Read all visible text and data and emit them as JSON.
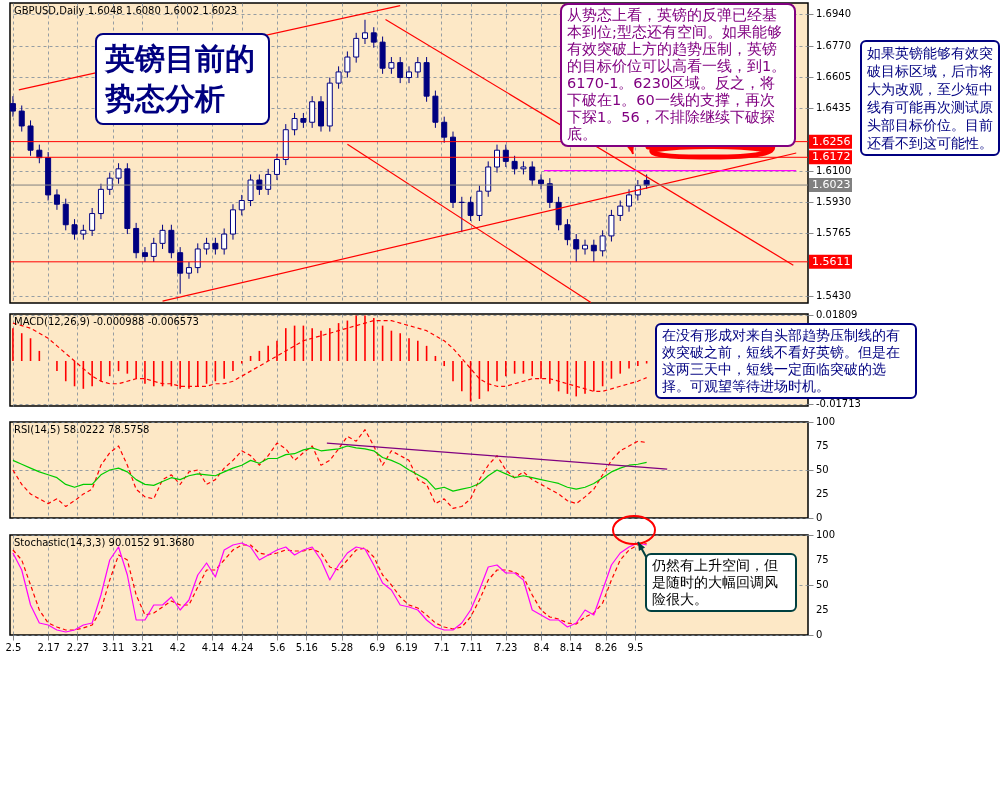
{
  "chart_data": [
    {
      "type": "candlestick",
      "title": "GBPUSD,Daily  1.6048 1.6080 1.6002 1.6023",
      "x": [
        "--02-05",
        "--02-08",
        "--02-11",
        "--02-14",
        "--02-17",
        "--02-20",
        "--02-23",
        "--02-26",
        "--03-01",
        "--03-04",
        "--03-07",
        "--03-10",
        "--03-13",
        "--03-16",
        "--03-19",
        "--03-22",
        "--03-25",
        "--03-28",
        "--03-31",
        "--04-03",
        "--04-06",
        "--04-09",
        "--04-12",
        "--04-15",
        "--04-18",
        "--04-21",
        "--04-24",
        "--04-27",
        "--04-30",
        "--05-03",
        "--05-06",
        "--05-09",
        "--05-12",
        "--05-15",
        "--05-18",
        "--05-21",
        "--05-24",
        "--05-27",
        "--05-30",
        "--06-02",
        "--06-05",
        "--06-08",
        "--06-11",
        "--06-14",
        "--06-17",
        "--06-20",
        "--06-23",
        "--06-26",
        "--06-29",
        "--07-02",
        "--07-05",
        "--07-08",
        "--07-11",
        "--07-14",
        "--07-17",
        "--07-20",
        "--07-23",
        "--07-26",
        "--07-29",
        "--08-01",
        "--08-04",
        "--08-07",
        "--08-10",
        "--08-13",
        "--08-16",
        "--08-19",
        "--08-22",
        "--08-25",
        "--08-28",
        "--08-31",
        "--09-03",
        "--09-06",
        "--09-09"
      ],
      "series": [
        {
          "color": "#000080",
          "ohlc": [
            [
              1.646,
              1.65,
              1.639,
              1.642
            ],
            [
              1.642,
              1.645,
              1.631,
              1.634
            ],
            [
              1.634,
              1.637,
              1.618,
              1.621
            ],
            [
              1.621,
              1.624,
              1.614,
              1.617
            ],
            [
              1.617,
              1.62,
              1.594,
              1.597
            ],
            [
              1.597,
              1.6,
              1.589,
              1.592
            ],
            [
              1.592,
              1.595,
              1.578,
              1.581
            ],
            [
              1.581,
              1.584,
              1.573,
              1.576
            ],
            [
              1.576,
              1.581,
              1.573,
              1.578
            ],
            [
              1.578,
              1.59,
              1.575,
              1.587
            ],
            [
              1.587,
              1.603,
              1.584,
              1.6
            ],
            [
              1.6,
              1.609,
              1.597,
              1.606
            ],
            [
              1.606,
              1.614,
              1.603,
              1.611
            ],
            [
              1.611,
              1.614,
              1.576,
              1.579
            ],
            [
              1.579,
              1.582,
              1.563,
              1.566
            ],
            [
              1.566,
              1.569,
              1.561,
              1.564
            ],
            [
              1.564,
              1.574,
              1.561,
              1.571
            ],
            [
              1.571,
              1.581,
              1.568,
              1.578
            ],
            [
              1.578,
              1.581,
              1.563,
              1.566
            ],
            [
              1.566,
              1.569,
              1.544,
              1.555
            ],
            [
              1.555,
              1.561,
              1.552,
              1.558
            ],
            [
              1.558,
              1.571,
              1.555,
              1.568
            ],
            [
              1.568,
              1.574,
              1.565,
              1.571
            ],
            [
              1.571,
              1.574,
              1.565,
              1.568
            ],
            [
              1.568,
              1.579,
              1.565,
              1.576
            ],
            [
              1.576,
              1.592,
              1.573,
              1.589
            ],
            [
              1.589,
              1.597,
              1.586,
              1.594
            ],
            [
              1.594,
              1.608,
              1.591,
              1.605
            ],
            [
              1.605,
              1.608,
              1.597,
              1.6
            ],
            [
              1.6,
              1.611,
              1.597,
              1.608
            ],
            [
              1.608,
              1.619,
              1.605,
              1.616
            ],
            [
              1.616,
              1.635,
              1.613,
              1.632
            ],
            [
              1.632,
              1.641,
              1.629,
              1.638
            ],
            [
              1.638,
              1.641,
              1.633,
              1.636
            ],
            [
              1.636,
              1.65,
              1.633,
              1.647
            ],
            [
              1.647,
              1.65,
              1.631,
              1.634
            ],
            [
              1.634,
              1.66,
              1.631,
              1.657
            ],
            [
              1.657,
              1.666,
              1.654,
              1.663
            ],
            [
              1.663,
              1.674,
              1.66,
              1.671
            ],
            [
              1.671,
              1.684,
              1.668,
              1.681
            ],
            [
              1.681,
              1.691,
              1.678,
              1.684
            ],
            [
              1.684,
              1.687,
              1.676,
              1.679
            ],
            [
              1.679,
              1.682,
              1.662,
              1.665
            ],
            [
              1.665,
              1.671,
              1.662,
              1.668
            ],
            [
              1.668,
              1.671,
              1.657,
              1.66
            ],
            [
              1.66,
              1.666,
              1.657,
              1.663
            ],
            [
              1.663,
              1.671,
              1.66,
              1.668
            ],
            [
              1.668,
              1.671,
              1.647,
              1.65
            ],
            [
              1.65,
              1.653,
              1.633,
              1.636
            ],
            [
              1.636,
              1.639,
              1.625,
              1.628
            ],
            [
              1.628,
              1.631,
              1.59,
              1.593
            ],
            [
              1.593,
              1.596,
              1.577,
              1.593
            ],
            [
              1.593,
              1.596,
              1.583,
              1.586
            ],
            [
              1.586,
              1.602,
              1.583,
              1.599
            ],
            [
              1.599,
              1.615,
              1.596,
              1.612
            ],
            [
              1.612,
              1.624,
              1.609,
              1.621
            ],
            [
              1.621,
              1.624,
              1.612,
              1.615
            ],
            [
              1.615,
              1.618,
              1.608,
              1.611
            ],
            [
              1.611,
              1.615,
              1.608,
              1.612
            ],
            [
              1.612,
              1.615,
              1.602,
              1.605
            ],
            [
              1.605,
              1.608,
              1.6,
              1.603
            ],
            [
              1.603,
              1.606,
              1.59,
              1.593
            ],
            [
              1.593,
              1.596,
              1.578,
              1.581
            ],
            [
              1.581,
              1.584,
              1.57,
              1.573
            ],
            [
              1.573,
              1.576,
              1.5611,
              1.568
            ],
            [
              1.568,
              1.573,
              1.565,
              1.57
            ],
            [
              1.57,
              1.573,
              1.5611,
              1.567
            ],
            [
              1.567,
              1.578,
              1.564,
              1.575
            ],
            [
              1.575,
              1.589,
              1.572,
              1.586
            ],
            [
              1.586,
              1.594,
              1.583,
              1.591
            ],
            [
              1.591,
              1.6,
              1.588,
              1.597
            ],
            [
              1.597,
              1.605,
              1.594,
              1.602
            ],
            [
              1.6048,
              1.608,
              1.6002,
              1.6023
            ]
          ]
        },
        {
          "type": "line",
          "color": "#ff0000",
          "x": [
            "--02-07",
            "--06-17"
          ],
          "values": [
            1.6534,
            1.6986
          ]
        },
        {
          "type": "line",
          "color": "#ff0000",
          "x": [
            "--03-28",
            "--10-30"
          ],
          "values": [
            1.54,
            1.6195
          ]
        },
        {
          "type": "line",
          "color": "#ff0000",
          "x": [
            "--06-12",
            "--10-29"
          ],
          "values": [
            1.6912,
            1.5593
          ]
        },
        {
          "type": "line",
          "color": "#ff0000",
          "x": [
            "--05-30",
            "--08-21"
          ],
          "values": [
            1.6242,
            1.5393
          ]
        },
        {
          "type": "line",
          "color": "#ff00ff",
          "x": [
            "--08-05",
            "--10-30"
          ],
          "values": [
            1.61,
            1.61
          ]
        }
      ],
      "xlim": [
        "--02-04",
        "--11-03"
      ],
      "xticks": [
        {
          "value": "--02-05",
          "label": "2.5"
        },
        {
          "value": "--02-17",
          "label": "2.17"
        },
        {
          "value": "--02-27",
          "label": "2.27"
        },
        {
          "value": "--03-11",
          "label": "3.11"
        },
        {
          "value": "--03-21",
          "label": "3.21"
        },
        {
          "value": "--04-02",
          "label": "4.2"
        },
        {
          "value": "--04-14",
          "label": "4.14"
        },
        {
          "value": "--04-24",
          "label": "4.24"
        },
        {
          "value": "--05-06",
          "label": "5.6"
        },
        {
          "value": "--05-16",
          "label": "5.16"
        },
        {
          "value": "--05-28",
          "label": "5.28"
        },
        {
          "value": "--06-09",
          "label": "6.9"
        },
        {
          "value": "--06-19",
          "label": "6.19"
        },
        {
          "value": "--07-01",
          "label": "7.1"
        },
        {
          "value": "--07-11",
          "label": "7.11"
        },
        {
          "value": "--07-23",
          "label": "7.23"
        },
        {
          "value": "--08-04",
          "label": "8.4"
        },
        {
          "value": "--08-14",
          "label": "8.14"
        },
        {
          "value": "--08-26",
          "label": "8.26"
        },
        {
          "value": "--09-05",
          "label": "9.5"
        }
      ],
      "ylim": [
        1.539,
        1.7
      ],
      "yticks": [
        {
          "value": 1.694,
          "label": "1.6940"
        },
        {
          "value": 1.677,
          "label": "1.6770"
        },
        1.6605,
        1.6435,
        {
          "value": 1.61,
          "label": "1.6100"
        },
        {
          "value": 1.593,
          "label": "1.5930"
        },
        1.5765,
        {
          "value": 1.543,
          "label": "1.5430"
        }
      ],
      "ref_lines": [
        {
          "axis": "y",
          "value": 1.6256,
          "label": "1.6256",
          "color": "#ff0000"
        },
        {
          "axis": "y",
          "value": 1.6172,
          "label": "1.6172",
          "color": "#ff0000"
        },
        {
          "axis": "y",
          "value": 1.5611,
          "label": "1.5611",
          "color": "#ff0000"
        },
        {
          "axis": "y",
          "value": 1.6023,
          "label": "1.6023",
          "color": "#808080"
        }
      ],
      "grid": true,
      "tick_labels": "y",
      "annotations": [
        "英镑目前的势态分析",
        "从势态上看，英镑的反弹已经基本到位;型态还有空间。如果能够有效突破上方的趋势压制，英镑的目标价位可以高看一线，到1。6170-1。6230区域。反之，将下破在1。60一线的支撑，再次下探1。56，不排除继续下破探底。",
        "如果英镑能够有效突破目标区域，后市将大为改观，至少短中线有可能再次测试原头部目标价位。目前还看不到这可能性。"
      ]
    },
    {
      "type": "bar",
      "title": "MACD(12,26,9)  -0.000988  -0.006573",
      "x": [
        "--02-05",
        "--02-08",
        "--02-11",
        "--02-14",
        "--02-17",
        "--02-20",
        "--02-23",
        "--02-26",
        "--03-01",
        "--03-04",
        "--03-07",
        "--03-10",
        "--03-13",
        "--03-16",
        "--03-19",
        "--03-22",
        "--03-25",
        "--03-28",
        "--03-31",
        "--04-03",
        "--04-06",
        "--04-09",
        "--04-12",
        "--04-15",
        "--04-18",
        "--04-21",
        "--04-24",
        "--04-27",
        "--04-30",
        "--05-03",
        "--05-06",
        "--05-09",
        "--05-12",
        "--05-15",
        "--05-18",
        "--05-21",
        "--05-24",
        "--05-27",
        "--05-30",
        "--06-02",
        "--06-05",
        "--06-08",
        "--06-11",
        "--06-14",
        "--06-17",
        "--06-20",
        "--06-23",
        "--06-26",
        "--06-29",
        "--07-02",
        "--07-05",
        "--07-08",
        "--07-11",
        "--07-14",
        "--07-17",
        "--07-20",
        "--07-23",
        "--07-26",
        "--07-29",
        "--08-01",
        "--08-04",
        "--08-07",
        "--08-10",
        "--08-13",
        "--08-16",
        "--08-19",
        "--08-22",
        "--08-25",
        "--08-28",
        "--08-31",
        "--09-03",
        "--09-06",
        "--09-09"
      ],
      "series": [
        {
          "color": "#ff0000",
          "values": [
            0.013,
            0.011,
            0.009,
            0.004,
            0.0,
            -0.004,
            -0.008,
            -0.01,
            -0.011,
            -0.01,
            -0.008,
            -0.006,
            -0.004,
            -0.005,
            -0.007,
            -0.009,
            -0.01,
            -0.01,
            -0.01,
            -0.011,
            -0.011,
            -0.01,
            -0.009,
            -0.008,
            -0.007,
            -0.004,
            -0.001,
            0.002,
            0.004,
            0.006,
            0.008,
            0.013,
            0.014,
            0.014,
            0.013,
            0.012,
            0.013,
            0.015,
            0.016,
            0.018,
            0.018,
            0.017,
            0.014,
            0.012,
            0.011,
            0.009,
            0.008,
            0.006,
            0.002,
            -0.002,
            -0.008,
            -0.012,
            -0.016,
            -0.015,
            -0.012,
            -0.008,
            -0.006,
            -0.005,
            -0.005,
            -0.006,
            -0.007,
            -0.009,
            -0.012,
            -0.013,
            -0.014,
            -0.013,
            -0.012,
            -0.01,
            -0.007,
            -0.005,
            -0.003,
            -0.002,
            -0.000988
          ]
        },
        {
          "type": "line",
          "color": "#ff0000",
          "line_style": "dashed",
          "values": [
            0.015,
            0.014,
            0.013,
            0.011,
            0.009,
            0.006,
            0.003,
            0.0,
            -0.003,
            -0.006,
            -0.008,
            -0.009,
            -0.009,
            -0.008,
            -0.007,
            -0.007,
            -0.008,
            -0.009,
            -0.009,
            -0.01,
            -0.01,
            -0.01,
            -0.01,
            -0.009,
            -0.009,
            -0.008,
            -0.006,
            -0.004,
            -0.002,
            0.0,
            0.002,
            0.004,
            0.006,
            0.008,
            0.009,
            0.01,
            0.011,
            0.012,
            0.013,
            0.014,
            0.015,
            0.016,
            0.016,
            0.016,
            0.015,
            0.014,
            0.013,
            0.012,
            0.01,
            0.008,
            0.005,
            0.001,
            -0.003,
            -0.007,
            -0.009,
            -0.01,
            -0.01,
            -0.009,
            -0.008,
            -0.007,
            -0.007,
            -0.007,
            -0.008,
            -0.009,
            -0.01,
            -0.011,
            -0.012,
            -0.012,
            -0.011,
            -0.01,
            -0.009,
            -0.008,
            -0.006573
          ]
        }
      ],
      "xlim": [
        "--02-04",
        "--11-03"
      ],
      "xticks": [
        {
          "value": "--02-05",
          "label": "2.5"
        },
        {
          "value": "--02-17",
          "label": "2.17"
        },
        {
          "value": "--02-27",
          "label": "2.27"
        },
        {
          "value": "--03-11",
          "label": "3.11"
        },
        {
          "value": "--03-21",
          "label": "3.21"
        },
        {
          "value": "--04-02",
          "label": "4.2"
        },
        {
          "value": "--04-14",
          "label": "4.14"
        },
        {
          "value": "--04-24",
          "label": "4.24"
        },
        {
          "value": "--05-06",
          "label": "5.6"
        },
        {
          "value": "--05-16",
          "label": "5.16"
        },
        {
          "value": "--05-28",
          "label": "5.28"
        },
        {
          "value": "--06-09",
          "label": "6.9"
        },
        {
          "value": "--06-19",
          "label": "6.19"
        },
        {
          "value": "--07-01",
          "label": "7.1"
        },
        {
          "value": "--07-11",
          "label": "7.11"
        },
        {
          "value": "--07-23",
          "label": "7.23"
        },
        {
          "value": "--08-04",
          "label": "8.4"
        },
        {
          "value": "--08-14",
          "label": "8.14"
        },
        {
          "value": "--08-26",
          "label": "8.26"
        },
        {
          "value": "--09-05",
          "label": "9.5"
        }
      ],
      "ylim": [
        -0.0178,
        0.0186
      ],
      "yticks": [
        0.01809,
        -0.01713
      ],
      "grid": true,
      "tick_labels": "y",
      "annotations": [
        "在没有形成对来自头部趋势压制线的有效突破之前，短线不看好英镑。但是在这两三天中，短线一定面临突破的选择。可观望等待进场时机。"
      ]
    },
    {
      "type": "line",
      "title": "RSI(14,5)  58.0222  78.5758",
      "x": [
        "--02-05",
        "--02-08",
        "--02-11",
        "--02-14",
        "--02-17",
        "--02-20",
        "--02-23",
        "--02-26",
        "--03-01",
        "--03-04",
        "--03-07",
        "--03-10",
        "--03-13",
        "--03-16",
        "--03-19",
        "--03-22",
        "--03-25",
        "--03-28",
        "--03-31",
        "--04-03",
        "--04-06",
        "--04-09",
        "--04-12",
        "--04-15",
        "--04-18",
        "--04-21",
        "--04-24",
        "--04-27",
        "--04-30",
        "--05-03",
        "--05-06",
        "--05-09",
        "--05-12",
        "--05-15",
        "--05-18",
        "--05-21",
        "--05-24",
        "--05-27",
        "--05-30",
        "--06-02",
        "--06-05",
        "--06-08",
        "--06-11",
        "--06-14",
        "--06-17",
        "--06-20",
        "--06-23",
        "--06-26",
        "--06-29",
        "--07-02",
        "--07-05",
        "--07-08",
        "--07-11",
        "--07-14",
        "--07-17",
        "--07-20",
        "--07-23",
        "--07-26",
        "--07-29",
        "--08-01",
        "--08-04",
        "--08-07",
        "--08-10",
        "--08-13",
        "--08-16",
        "--08-19",
        "--08-22",
        "--08-25",
        "--08-28",
        "--08-31",
        "--09-03",
        "--09-06",
        "--09-09"
      ],
      "series": [
        {
          "color": "#ff0000",
          "line_style": "dashed",
          "values": [
            50,
            35,
            25,
            20,
            15,
            20,
            12,
            18,
            25,
            30,
            55,
            68,
            75,
            55,
            30,
            22,
            20,
            40,
            45,
            35,
            48,
            50,
            35,
            40,
            52,
            60,
            70,
            65,
            55,
            65,
            78,
            72,
            60,
            68,
            75,
            55,
            60,
            72,
            85,
            80,
            92,
            75,
            55,
            70,
            65,
            60,
            40,
            35,
            15,
            20,
            10,
            12,
            20,
            40,
            55,
            65,
            50,
            42,
            48,
            40,
            35,
            30,
            25,
            18,
            15,
            22,
            30,
            45,
            60,
            70,
            75,
            80,
            78.5758
          ]
        },
        {
          "color": "#00cc00",
          "values": [
            60,
            56,
            52,
            48,
            45,
            42,
            35,
            32,
            35,
            35,
            45,
            50,
            52,
            48,
            40,
            35,
            34,
            38,
            42,
            40,
            44,
            46,
            45,
            44,
            48,
            52,
            55,
            60,
            57,
            62,
            62,
            66,
            67,
            71,
            73,
            70,
            71,
            72,
            75,
            73,
            72,
            70,
            63,
            60,
            56,
            50,
            45,
            40,
            30,
            32,
            28,
            30,
            32,
            36,
            44,
            50,
            46,
            42,
            44,
            42,
            40,
            38,
            36,
            32,
            30,
            32,
            36,
            42,
            48,
            52,
            55,
            56,
            58.0222
          ]
        },
        {
          "color": "#800080",
          "x": [
            "--05-23",
            "--09-16"
          ],
          "values": [
            78,
            51
          ]
        }
      ],
      "xlim": [
        "--02-04",
        "--11-03"
      ],
      "xticks": [
        {
          "value": "--02-05",
          "label": "2.5"
        },
        {
          "value": "--02-17",
          "label": "2.17"
        },
        {
          "value": "--02-27",
          "label": "2.27"
        },
        {
          "value": "--03-11",
          "label": "3.11"
        },
        {
          "value": "--03-21",
          "label": "3.21"
        },
        {
          "value": "--04-02",
          "label": "4.2"
        },
        {
          "value": "--04-14",
          "label": "4.14"
        },
        {
          "value": "--04-24",
          "label": "4.24"
        },
        {
          "value": "--05-06",
          "label": "5.6"
        },
        {
          "value": "--05-16",
          "label": "5.16"
        },
        {
          "value": "--05-28",
          "label": "5.28"
        },
        {
          "value": "--06-09",
          "label": "6.9"
        },
        {
          "value": "--06-19",
          "label": "6.19"
        },
        {
          "value": "--07-01",
          "label": "7.1"
        },
        {
          "value": "--07-11",
          "label": "7.11"
        },
        {
          "value": "--07-23",
          "label": "7.23"
        },
        {
          "value": "--08-04",
          "label": "8.4"
        },
        {
          "value": "--08-14",
          "label": "8.14"
        },
        {
          "value": "--08-26",
          "label": "8.26"
        },
        {
          "value": "--09-05",
          "label": "9.5"
        }
      ],
      "ylim": [
        0,
        100
      ],
      "yticks": [
        0,
        25,
        50,
        75,
        100
      ],
      "grid": true,
      "tick_labels": "y"
    },
    {
      "type": "line",
      "title": "Stochastic(14,3,3)  90.0152  91.3680",
      "x": [
        "--02-05",
        "--02-08",
        "--02-11",
        "--02-14",
        "--02-17",
        "--02-20",
        "--02-23",
        "--02-26",
        "--03-01",
        "--03-04",
        "--03-07",
        "--03-10",
        "--03-13",
        "--03-16",
        "--03-19",
        "--03-22",
        "--03-25",
        "--03-28",
        "--03-31",
        "--04-03",
        "--04-06",
        "--04-09",
        "--04-12",
        "--04-15",
        "--04-18",
        "--04-21",
        "--04-24",
        "--04-27",
        "--04-30",
        "--05-03",
        "--05-06",
        "--05-09",
        "--05-12",
        "--05-15",
        "--05-18",
        "--05-21",
        "--05-24",
        "--05-27",
        "--05-30",
        "--06-02",
        "--06-05",
        "--06-08",
        "--06-11",
        "--06-14",
        "--06-17",
        "--06-20",
        "--06-23",
        "--06-26",
        "--06-29",
        "--07-02",
        "--07-05",
        "--07-08",
        "--07-11",
        "--07-14",
        "--07-17",
        "--07-20",
        "--07-23",
        "--07-26",
        "--07-29",
        "--08-01",
        "--08-04",
        "--08-07",
        "--08-10",
        "--08-13",
        "--08-16",
        "--08-19",
        "--08-22",
        "--08-25",
        "--08-28",
        "--08-31",
        "--09-03",
        "--09-06",
        "--09-09"
      ],
      "series": [
        {
          "color": "#ff0000",
          "line_style": "dashed",
          "values": [
            85,
            75,
            50,
            25,
            12,
            8,
            5,
            5,
            7,
            10,
            25,
            55,
            80,
            75,
            40,
            20,
            22,
            28,
            34,
            30,
            30,
            48,
            65,
            65,
            75,
            85,
            90,
            90,
            82,
            80,
            82,
            85,
            84,
            84,
            86,
            82,
            68,
            65,
            75,
            85,
            87,
            78,
            60,
            50,
            38,
            30,
            27,
            20,
            12,
            8,
            6,
            8,
            18,
            35,
            55,
            65,
            65,
            63,
            58,
            40,
            25,
            18,
            16,
            12,
            11,
            18,
            22,
            32,
            55,
            75,
            85,
            90,
            91.368
          ]
        },
        {
          "color": "#ff00ff",
          "values": [
            82,
            65,
            30,
            12,
            10,
            5,
            3,
            5,
            10,
            12,
            40,
            75,
            88,
            60,
            15,
            15,
            30,
            30,
            38,
            25,
            35,
            60,
            72,
            58,
            85,
            90,
            92,
            88,
            75,
            80,
            85,
            88,
            80,
            85,
            88,
            75,
            55,
            70,
            82,
            88,
            86,
            70,
            52,
            45,
            30,
            28,
            25,
            15,
            8,
            5,
            5,
            12,
            25,
            45,
            68,
            70,
            62,
            62,
            55,
            25,
            20,
            15,
            15,
            8,
            12,
            25,
            20,
            45,
            70,
            82,
            88,
            92,
            90.0152
          ]
        }
      ],
      "xlim": [
        "--02-04",
        "--11-03"
      ],
      "xticks": [
        {
          "value": "--02-05",
          "label": "2.5"
        },
        {
          "value": "--02-17",
          "label": "2.17"
        },
        {
          "value": "--02-27",
          "label": "2.27"
        },
        {
          "value": "--03-11",
          "label": "3.11"
        },
        {
          "value": "--03-21",
          "label": "3.21"
        },
        {
          "value": "--04-02",
          "label": "4.2"
        },
        {
          "value": "--04-14",
          "label": "4.14"
        },
        {
          "value": "--04-24",
          "label": "4.24"
        },
        {
          "value": "--05-06",
          "label": "5.6"
        },
        {
          "value": "--05-16",
          "label": "5.16"
        },
        {
          "value": "--05-28",
          "label": "5.28"
        },
        {
          "value": "--06-09",
          "label": "6.9"
        },
        {
          "value": "--06-19",
          "label": "6.19"
        },
        {
          "value": "--07-01",
          "label": "7.1"
        },
        {
          "value": "--07-11",
          "label": "7.11"
        },
        {
          "value": "--07-23",
          "label": "7.23"
        },
        {
          "value": "--08-04",
          "label": "8.4"
        },
        {
          "value": "--08-14",
          "label": "8.14"
        },
        {
          "value": "--08-26",
          "label": "8.26"
        },
        {
          "value": "--09-05",
          "label": "9.5"
        }
      ],
      "ylim": [
        0,
        100
      ],
      "yticks": [
        0,
        25,
        50,
        75,
        100
      ],
      "grid": true,
      "annotations": [
        "仍然有上升空间，但是随时的大幅回调风险很大。"
      ]
    }
  ]
}
